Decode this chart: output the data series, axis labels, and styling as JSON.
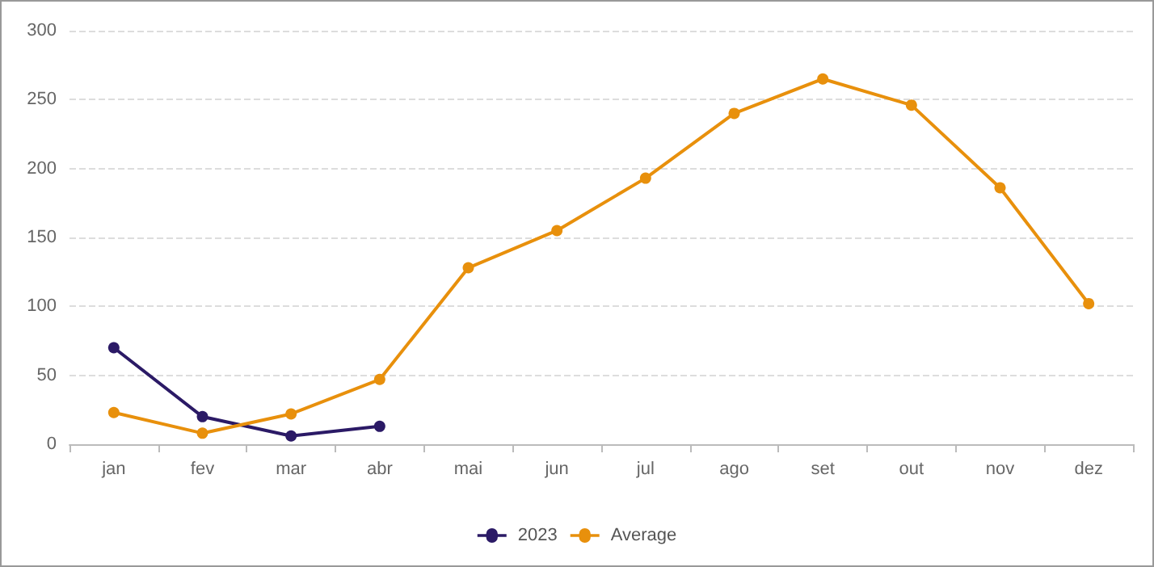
{
  "chart_data": {
    "type": "line",
    "categories": [
      "jan",
      "fev",
      "mar",
      "abr",
      "mai",
      "jun",
      "jul",
      "ago",
      "set",
      "out",
      "nov",
      "dez"
    ],
    "series": [
      {
        "name": "2023",
        "color": "#2b1a66",
        "values": [
          70,
          20,
          6,
          13,
          null,
          null,
          null,
          null,
          null,
          null,
          null,
          null
        ]
      },
      {
        "name": "Average",
        "color": "#e8900c",
        "values": [
          23,
          8,
          22,
          47,
          128,
          155,
          193,
          240,
          265,
          246,
          186,
          102
        ]
      }
    ],
    "ylim": [
      0,
      300
    ],
    "yticks": [
      0,
      50,
      100,
      150,
      200,
      250,
      300
    ],
    "grid": "y",
    "legend": "bottom",
    "marker": "circle",
    "line_style": "solid"
  }
}
